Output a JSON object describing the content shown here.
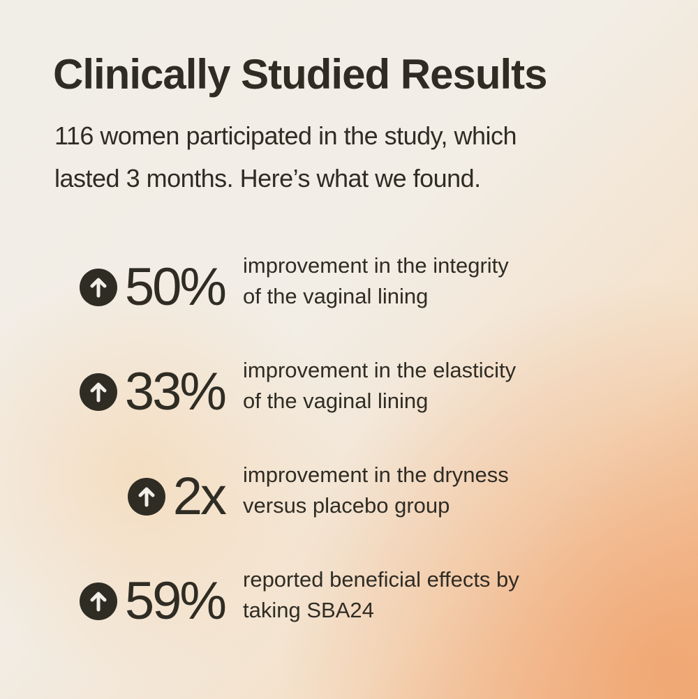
{
  "header": {
    "title": "Clinically Studied Results",
    "subtitle": [
      "116 women participated in the study, which",
      "lasted 3 months. Here’s what we found."
    ]
  },
  "stats": [
    {
      "value": "50%",
      "description": [
        "improvement in the integrity",
        "of the vaginal lining"
      ]
    },
    {
      "value": "33%",
      "description": [
        "improvement in the elasticity",
        "of the vaginal lining"
      ]
    },
    {
      "value": "2x",
      "description": [
        "improvement in the dryness",
        "versus placebo group"
      ]
    },
    {
      "value": "59%",
      "description": [
        "reported beneficial effects by",
        "taking SBA24"
      ]
    }
  ]
}
